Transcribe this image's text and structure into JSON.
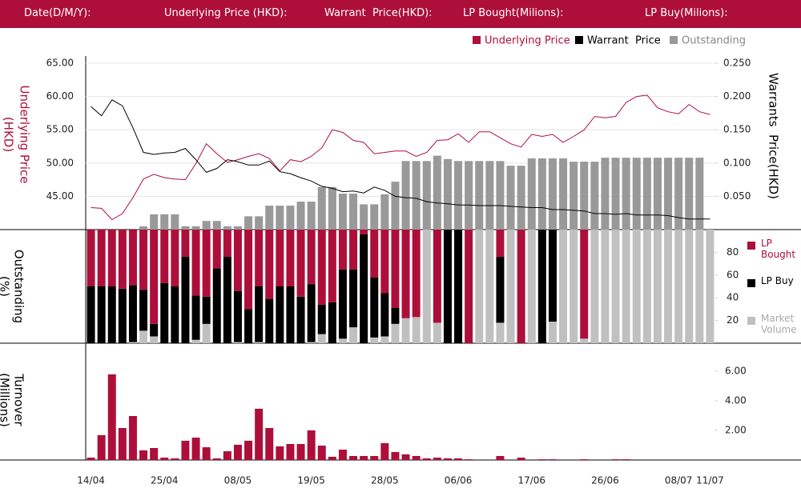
{
  "header": {
    "labels": [
      "Date(D/M/Y):",
      "Underlying Price (HKD):",
      "Warrant  Price(HKD):",
      "LP Bought(Milions):",
      "LP Buy(Milions):"
    ]
  },
  "chart_data": [
    {
      "type": "line",
      "ylabel": [
        "Underlying Price",
        "(HKD)"
      ],
      "y2label": "Warrants  Price(HKD)",
      "ylim": [
        40,
        65
      ],
      "yticks": [
        {
          "value": 65,
          "label": "65.00"
        },
        {
          "value": 60,
          "label": "60.00"
        },
        {
          "value": 55,
          "label": "55.00"
        },
        {
          "value": 50,
          "label": "50.00"
        },
        {
          "value": 45,
          "label": "45.00"
        }
      ],
      "y2lim": [
        0,
        0.25
      ],
      "y2ticks": [
        {
          "value": 0.25,
          "label": "0.250"
        },
        {
          "value": 0.2,
          "label": "0.200"
        },
        {
          "value": 0.15,
          "label": "0.150"
        },
        {
          "value": 0.1,
          "label": "0.100"
        },
        {
          "value": 0.05,
          "label": "0.050"
        }
      ],
      "grid": true,
      "series": [
        {
          "name": "Underlying Price",
          "color": "#ad0f3a",
          "values": [
            43.3,
            43.2,
            41.5,
            42.4,
            44.8,
            47.6,
            48.3,
            47.8,
            47.6,
            47.5,
            49.9,
            52.9,
            51.4,
            50.1,
            50.5,
            51.0,
            51.4,
            50.7,
            48.8,
            50.5,
            50.2,
            51.0,
            52.3,
            55.0,
            54.6,
            53.4,
            53.1,
            51.4,
            51.6,
            51.8,
            51.8,
            51.0,
            51.6,
            53.4,
            53.5,
            54.4,
            53.1,
            54.7,
            54.7,
            53.8,
            52.9,
            52.4,
            54.3,
            54.0,
            54.3,
            53.1,
            54.0,
            55.0,
            57.0,
            56.8,
            57.0,
            59.1,
            60.0,
            60.2,
            58.3,
            57.7,
            57.4,
            58.8,
            57.7,
            57.3
          ]
        },
        {
          "name": "Warrant  Price",
          "color": "#000000",
          "axis": "y2",
          "values": [
            0.185,
            0.171,
            0.195,
            0.186,
            0.153,
            0.116,
            0.113,
            0.115,
            0.116,
            0.122,
            0.105,
            0.086,
            0.092,
            0.105,
            0.102,
            0.097,
            0.097,
            0.103,
            0.087,
            0.084,
            0.078,
            0.073,
            0.065,
            0.062,
            0.057,
            0.058,
            0.055,
            0.064,
            0.059,
            0.05,
            0.048,
            0.047,
            0.042,
            0.04,
            0.039,
            0.037,
            0.037,
            0.036,
            0.036,
            0.036,
            0.035,
            0.034,
            0.033,
            0.033,
            0.03,
            0.03,
            0.029,
            0.028,
            0.024,
            0.024,
            0.023,
            0.024,
            0.022,
            0.022,
            0.022,
            0.021,
            0.018,
            0.016,
            0.016,
            0.016
          ]
        },
        {
          "name": "Outstanding",
          "type": "bar",
          "color": "#999999",
          "axis": "y2",
          "values": [
            0,
            0,
            0,
            0,
            0,
            0.005,
            0.023,
            0.023,
            0.023,
            0.005,
            0.005,
            0.013,
            0.013,
            0.005,
            0.005,
            0.02,
            0.02,
            0.036,
            0.036,
            0.036,
            0.042,
            0.042,
            0.064,
            0.064,
            0.054,
            0.054,
            0.038,
            0.038,
            0.053,
            0.072,
            0.103,
            0.103,
            0.103,
            0.111,
            0.106,
            0.103,
            0.103,
            0.103,
            0.103,
            0.103,
            0.096,
            0.096,
            0.107,
            0.107,
            0.107,
            0.107,
            0.102,
            0.102,
            0.102,
            0.108,
            0.108,
            0.108,
            0.108,
            0.108,
            0.108,
            0.108,
            0.108,
            0.108,
            0.108,
            0
          ]
        }
      ]
    },
    {
      "type": "bar",
      "stacked": true,
      "ylabel": [
        "Outstanding",
        "(%)"
      ],
      "ylim": [
        0,
        100
      ],
      "yticks": [
        80,
        60,
        40,
        20
      ],
      "series": [
        {
          "name": "LP Bought",
          "color": "#ad0f3a",
          "values": [
            50,
            50,
            50,
            52,
            49,
            53,
            83,
            47,
            50,
            24,
            58,
            59,
            34,
            24,
            54,
            70,
            50,
            61,
            50,
            50,
            59,
            48,
            66,
            64,
            35,
            35,
            4,
            42,
            56,
            69,
            78,
            77,
            0,
            82,
            0,
            0,
            100,
            0,
            0,
            24,
            0,
            100,
            0,
            0,
            0,
            0,
            0,
            96,
            0,
            0,
            0,
            0,
            0,
            0,
            0,
            0,
            0,
            0,
            0,
            0
          ]
        },
        {
          "name": "LP Buy",
          "color": "#000000",
          "values": [
            50,
            50,
            50,
            48,
            50,
            36,
            11,
            53,
            50,
            76,
            39,
            24,
            66,
            76,
            45,
            30,
            49,
            39,
            50,
            50,
            41,
            51,
            26,
            36,
            61,
            51,
            96,
            53,
            38,
            14,
            0,
            0,
            0,
            0,
            100,
            100,
            0,
            0,
            0,
            58,
            0,
            0,
            0,
            100,
            81,
            0,
            0,
            0,
            0,
            0,
            0,
            0,
            0,
            0,
            0,
            0,
            0,
            0,
            0,
            0
          ]
        },
        {
          "name": "Market Volume",
          "color": "#c0c0c0",
          "values": [
            0,
            0,
            0,
            0,
            1,
            11,
            6,
            0,
            0,
            0,
            3,
            17,
            0,
            0,
            1,
            0,
            1,
            0,
            0,
            0,
            0,
            1,
            8,
            0,
            4,
            14,
            0,
            5,
            6,
            17,
            22,
            23,
            100,
            18,
            0,
            0,
            0,
            100,
            100,
            18,
            100,
            0,
            100,
            0,
            19,
            100,
            100,
            4,
            100,
            100,
            100,
            100,
            100,
            100,
            100,
            100,
            100,
            100,
            100,
            100
          ]
        }
      ]
    },
    {
      "type": "bar",
      "ylabel": [
        "Turnover",
        "(Millions)"
      ],
      "categories": [
        "14/04",
        null,
        null,
        null,
        null,
        null,
        null,
        "25/04",
        null,
        null,
        null,
        null,
        null,
        null,
        "08/05",
        null,
        null,
        null,
        null,
        null,
        null,
        "19/05",
        null,
        null,
        null,
        null,
        null,
        null,
        "28/05",
        null,
        null,
        null,
        null,
        null,
        null,
        "06/06",
        null,
        null,
        null,
        null,
        null,
        null,
        "17/06",
        null,
        null,
        null,
        null,
        null,
        null,
        "26/06",
        null,
        null,
        null,
        null,
        null,
        null,
        "08/07",
        null,
        null,
        "11/07"
      ],
      "ylim": [
        0,
        6.75
      ],
      "yticks": [
        {
          "value": 6,
          "label": "6.00"
        },
        {
          "value": 4,
          "label": "4.00"
        },
        {
          "value": 2,
          "label": "2.00"
        }
      ],
      "color": "#ad0f3a",
      "values": [
        0.16,
        1.68,
        5.78,
        2.16,
        2.97,
        0.65,
        0.81,
        0.16,
        0.11,
        1.3,
        1.51,
        0.86,
        0.11,
        0.59,
        1.03,
        1.3,
        3.46,
        2.16,
        0.92,
        1.08,
        1.08,
        2.0,
        0.97,
        0.22,
        0.7,
        0.27,
        0.27,
        0.27,
        1.14,
        0.54,
        0.38,
        0.27,
        0.11,
        0.16,
        0.11,
        0.11,
        0.05,
        0,
        0,
        0.27,
        0,
        0.16,
        0,
        0.05,
        0.05,
        0,
        0,
        0.05,
        0,
        0,
        0.05,
        0.05,
        0,
        0,
        0,
        0,
        0,
        0,
        0,
        0
      ]
    }
  ]
}
